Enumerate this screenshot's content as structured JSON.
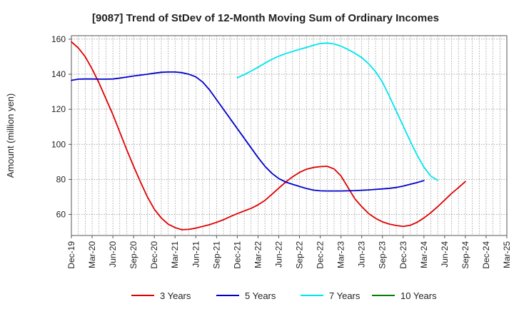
{
  "chart_data": {
    "type": "line",
    "title": "[9087]  Trend of StDev of 12-Month Moving Sum of Ordinary Incomes",
    "ylabel": "Amount (million yen)",
    "xlabel": "",
    "ylim": [
      48,
      162
    ],
    "yticks": [
      60,
      80,
      100,
      120,
      140,
      160
    ],
    "x_ticks": [
      "Dec-19",
      "Mar-20",
      "Jun-20",
      "Sep-20",
      "Dec-20",
      "Mar-21",
      "Jun-21",
      "Sep-21",
      "Dec-21",
      "Mar-22",
      "Jun-22",
      "Sep-22",
      "Dec-22",
      "Mar-23",
      "Jun-23",
      "Sep-23",
      "Dec-23",
      "Mar-24",
      "Jun-24",
      "Sep-24",
      "Dec-24",
      "Mar-25"
    ],
    "grid": true,
    "legend_position": "bottom",
    "series": [
      {
        "name": "3 Years",
        "color": "#e00000",
        "points": [
          [
            "Dec-19",
            158.5
          ],
          [
            "Jan-20",
            155
          ],
          [
            "Feb-20",
            150
          ],
          [
            "Mar-20",
            143
          ],
          [
            "Apr-20",
            135
          ],
          [
            "May-20",
            126
          ],
          [
            "Jun-20",
            117
          ],
          [
            "Jul-20",
            107
          ],
          [
            "Aug-20",
            97
          ],
          [
            "Sep-20",
            87.5
          ],
          [
            "Oct-20",
            78.5
          ],
          [
            "Nov-20",
            70
          ],
          [
            "Dec-20",
            63
          ],
          [
            "Jan-21",
            58
          ],
          [
            "Feb-21",
            54.5
          ],
          [
            "Mar-21",
            52.5
          ],
          [
            "Apr-21",
            51.3
          ],
          [
            "May-21",
            51.5
          ],
          [
            "Jun-21",
            52.2
          ],
          [
            "Jul-21",
            53.2
          ],
          [
            "Aug-21",
            54.2
          ],
          [
            "Sep-21",
            55.5
          ],
          [
            "Oct-21",
            57
          ],
          [
            "Nov-21",
            58.8
          ],
          [
            "Dec-21",
            60.5
          ],
          [
            "Jan-22",
            62
          ],
          [
            "Feb-22",
            63.5
          ],
          [
            "Mar-22",
            65.5
          ],
          [
            "Apr-22",
            68
          ],
          [
            "May-22",
            71.5
          ],
          [
            "Jun-22",
            75
          ],
          [
            "Jul-22",
            78.5
          ],
          [
            "Aug-22",
            81.5
          ],
          [
            "Sep-22",
            84
          ],
          [
            "Oct-22",
            85.8
          ],
          [
            "Nov-22",
            86.8
          ],
          [
            "Dec-22",
            87.3
          ],
          [
            "Jan-23",
            87.5
          ],
          [
            "Feb-23",
            86
          ],
          [
            "Mar-23",
            82
          ],
          [
            "Apr-23",
            75.5
          ],
          [
            "May-23",
            69
          ],
          [
            "Jun-23",
            64.5
          ],
          [
            "Jul-23",
            60.5
          ],
          [
            "Aug-23",
            57.8
          ],
          [
            "Sep-23",
            55.8
          ],
          [
            "Oct-23",
            54.5
          ],
          [
            "Nov-23",
            53.7
          ],
          [
            "Dec-23",
            53.2
          ],
          [
            "Jan-24",
            53.8
          ],
          [
            "Feb-24",
            55.5
          ],
          [
            "Mar-24",
            58
          ],
          [
            "Apr-24",
            61
          ],
          [
            "May-24",
            64.5
          ],
          [
            "Jun-24",
            68.2
          ],
          [
            "Jul-24",
            72
          ],
          [
            "Aug-24",
            75.3
          ],
          [
            "Sep-24",
            78.8
          ]
        ]
      },
      {
        "name": "5 Years",
        "color": "#0000cc",
        "points": [
          [
            "Dec-19",
            136.5
          ],
          [
            "Jan-20",
            137.2
          ],
          [
            "Feb-20",
            137.3
          ],
          [
            "Mar-20",
            137.3
          ],
          [
            "Apr-20",
            137.2
          ],
          [
            "May-20",
            137.2
          ],
          [
            "Jun-20",
            137.3
          ],
          [
            "Jul-20",
            137.8
          ],
          [
            "Aug-20",
            138.4
          ],
          [
            "Sep-20",
            139
          ],
          [
            "Oct-20",
            139.5
          ],
          [
            "Nov-20",
            140
          ],
          [
            "Dec-20",
            140.6
          ],
          [
            "Jan-21",
            141.1
          ],
          [
            "Feb-21",
            141.3
          ],
          [
            "Mar-21",
            141.3
          ],
          [
            "Apr-21",
            140.9
          ],
          [
            "May-21",
            140
          ],
          [
            "Jun-21",
            138.5
          ],
          [
            "Jul-21",
            135.5
          ],
          [
            "Aug-21",
            131
          ],
          [
            "Sep-21",
            125.5
          ],
          [
            "Oct-21",
            120
          ],
          [
            "Nov-21",
            114.5
          ],
          [
            "Dec-21",
            109
          ],
          [
            "Jan-22",
            103.5
          ],
          [
            "Feb-22",
            98
          ],
          [
            "Mar-22",
            92.5
          ],
          [
            "Apr-22",
            87.5
          ],
          [
            "May-22",
            83.5
          ],
          [
            "Jun-22",
            80.5
          ],
          [
            "Jul-22",
            78.5
          ],
          [
            "Aug-22",
            77.2
          ],
          [
            "Sep-22",
            76
          ],
          [
            "Oct-22",
            74.8
          ],
          [
            "Nov-22",
            73.9
          ],
          [
            "Dec-22",
            73.5
          ],
          [
            "Jan-23",
            73.4
          ],
          [
            "Feb-23",
            73.4
          ],
          [
            "Mar-23",
            73.4
          ],
          [
            "Apr-23",
            73.5
          ],
          [
            "May-23",
            73.6
          ],
          [
            "Jun-23",
            73.8
          ],
          [
            "Jul-23",
            74
          ],
          [
            "Aug-23",
            74.3
          ],
          [
            "Sep-23",
            74.6
          ],
          [
            "Oct-23",
            74.9
          ],
          [
            "Nov-23",
            75.4
          ],
          [
            "Dec-23",
            76.2
          ],
          [
            "Jan-24",
            77.2
          ],
          [
            "Feb-24",
            78.2
          ],
          [
            "Mar-24",
            79.3
          ]
        ]
      },
      {
        "name": "7 Years",
        "color": "#00e5ee",
        "points": [
          [
            "Dec-21",
            138
          ],
          [
            "Jan-22",
            139.8
          ],
          [
            "Feb-22",
            141.8
          ],
          [
            "Mar-22",
            144
          ],
          [
            "Apr-22",
            146.3
          ],
          [
            "May-22",
            148.5
          ],
          [
            "Jun-22",
            150.3
          ],
          [
            "Jul-22",
            151.8
          ],
          [
            "Aug-22",
            153
          ],
          [
            "Sep-22",
            154.2
          ],
          [
            "Oct-22",
            155.3
          ],
          [
            "Nov-22",
            156.5
          ],
          [
            "Dec-22",
            157.5
          ],
          [
            "Jan-23",
            157.8
          ],
          [
            "Feb-23",
            157.3
          ],
          [
            "Mar-23",
            156
          ],
          [
            "Apr-23",
            154.2
          ],
          [
            "May-23",
            152
          ],
          [
            "Jun-23",
            149.5
          ],
          [
            "Jul-23",
            146
          ],
          [
            "Aug-23",
            141.5
          ],
          [
            "Sep-23",
            135.5
          ],
          [
            "Oct-23",
            127.5
          ],
          [
            "Nov-23",
            119
          ],
          [
            "Dec-23",
            110.5
          ],
          [
            "Jan-24",
            102
          ],
          [
            "Feb-24",
            94
          ],
          [
            "Mar-24",
            87
          ],
          [
            "Apr-24",
            81.8
          ],
          [
            "May-24",
            79.5
          ]
        ]
      },
      {
        "name": "10 Years",
        "color": "#008000",
        "points": []
      }
    ]
  }
}
